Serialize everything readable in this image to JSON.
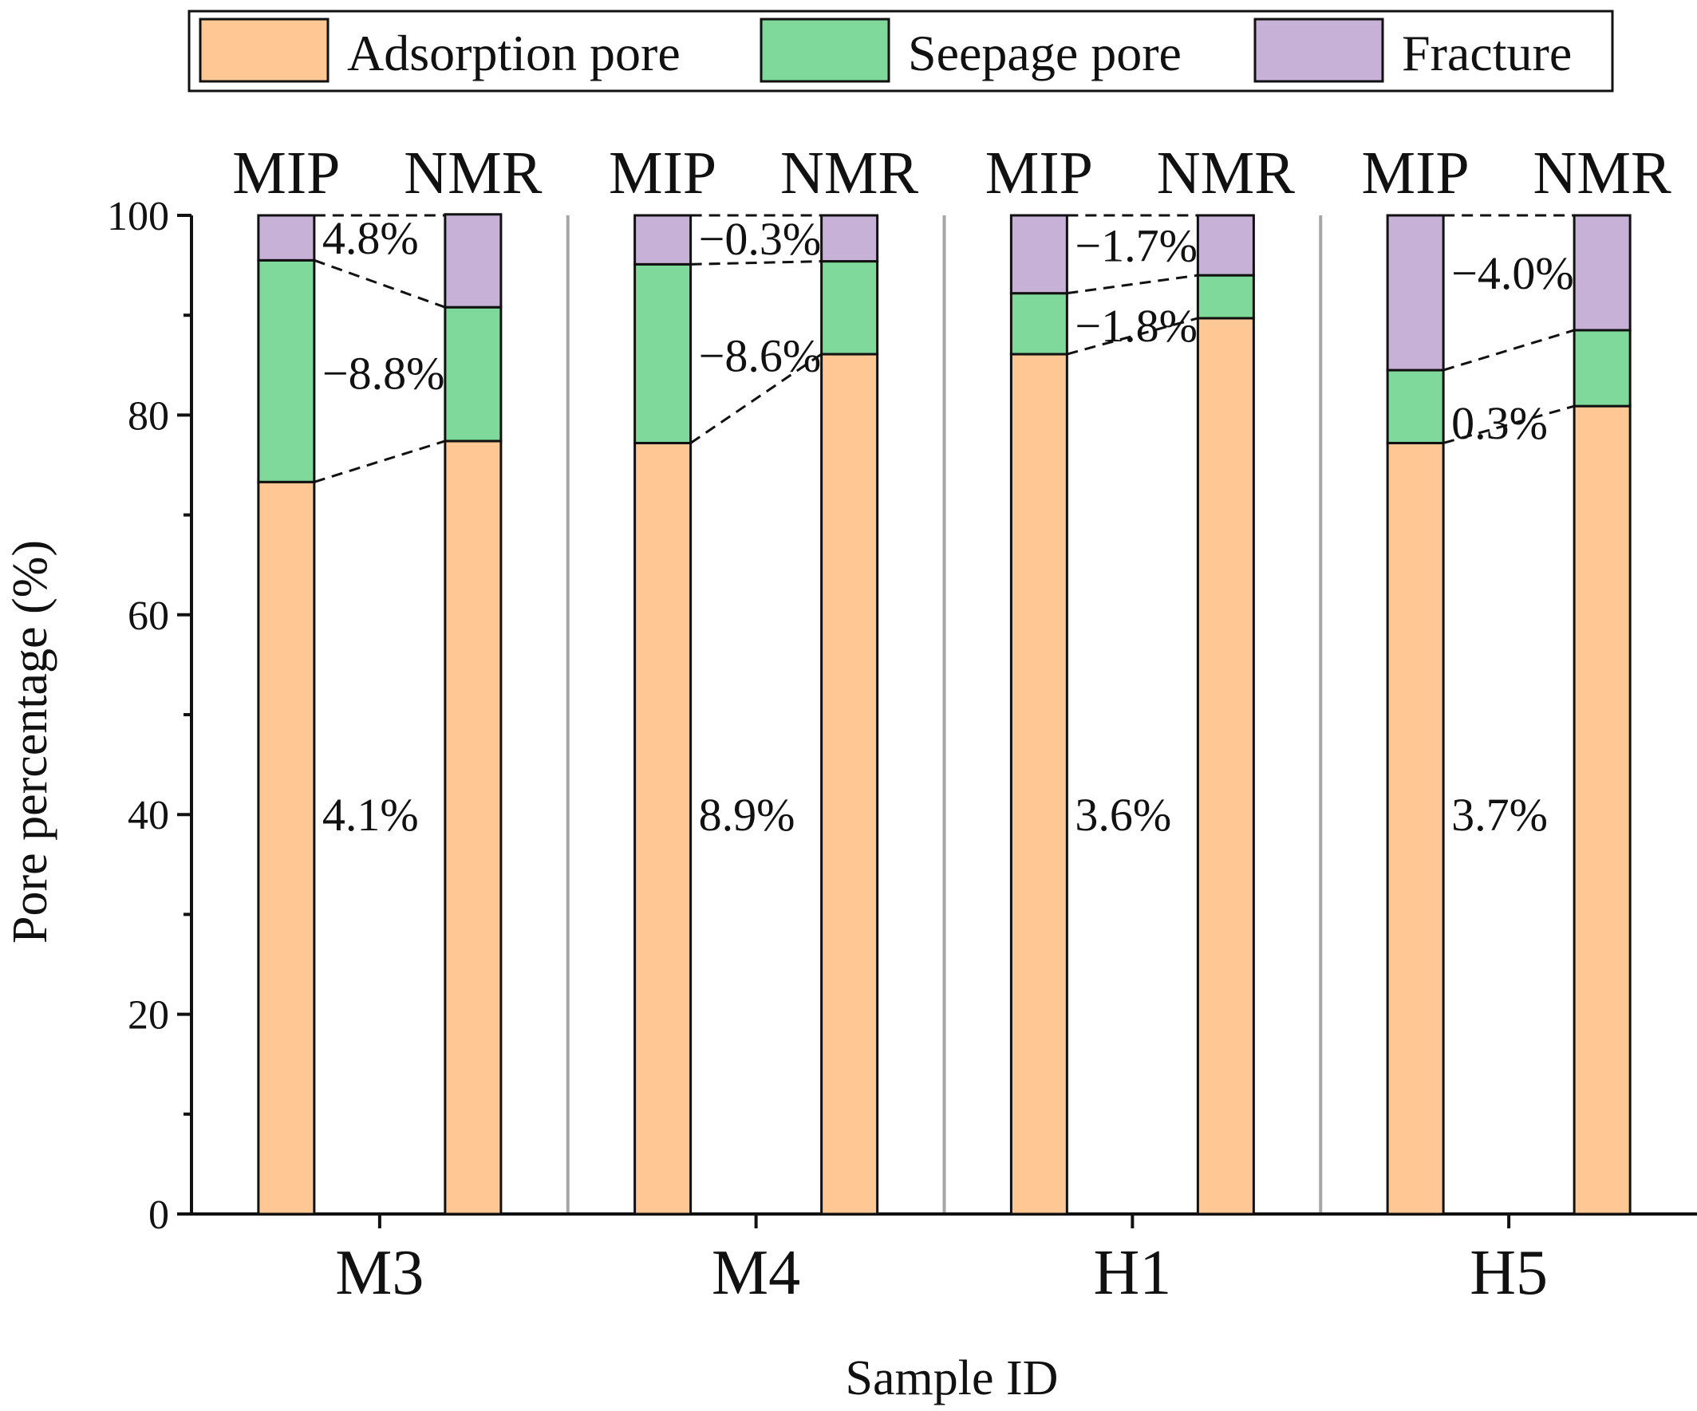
{
  "chart_data": {
    "type": "stacked-bar",
    "xlabel": "Sample ID",
    "ylabel": "Pore percentage (%)",
    "ylim": [
      0,
      100
    ],
    "yticks": [
      0,
      20,
      40,
      60,
      80,
      100
    ],
    "categories": [
      "M3",
      "M4",
      "H1",
      "H5"
    ],
    "methods": [
      "MIP",
      "NMR"
    ],
    "legend": [
      {
        "name": "Adsorption pore",
        "color": "#FEC794"
      },
      {
        "name": "Seepage pore",
        "color": "#7FD99A"
      },
      {
        "name": "Fracture",
        "color": "#C7B1D7"
      }
    ],
    "series": [
      {
        "name": "Adsorption pore",
        "values": {
          "M3": {
            "MIP": 73.3,
            "NMR": 77.4
          },
          "M4": {
            "MIP": 77.2,
            "NMR": 86.1
          },
          "H1": {
            "MIP": 86.1,
            "NMR": 89.7
          },
          "H5": {
            "MIP": 77.2,
            "NMR": 80.9
          }
        }
      },
      {
        "name": "Seepage pore",
        "values": {
          "M3": {
            "MIP": 22.2,
            "NMR": 13.4
          },
          "M4": {
            "MIP": 17.9,
            "NMR": 9.3
          },
          "H1": {
            "MIP": 6.1,
            "NMR": 4.3
          },
          "H5": {
            "MIP": 7.3,
            "NMR": 7.6
          }
        }
      },
      {
        "name": "Fracture",
        "values": {
          "M3": {
            "MIP": 4.5,
            "NMR": 9.3
          },
          "M4": {
            "MIP": 4.9,
            "NMR": 4.6
          },
          "H1": {
            "MIP": 7.8,
            "NMR": 6.0
          },
          "H5": {
            "MIP": 15.5,
            "NMR": 11.5
          }
        }
      }
    ],
    "annotations": [
      {
        "category": "M3",
        "fracture": "4.8%",
        "seepage": "−8.8%",
        "adsorption": "4.1%"
      },
      {
        "category": "M4",
        "fracture": "−0.3%",
        "seepage": "−8.6%",
        "adsorption": "8.9%"
      },
      {
        "category": "H1",
        "fracture": "−1.7%",
        "seepage": "−1.8%",
        "adsorption": "3.6%"
      },
      {
        "category": "H5",
        "fracture": "−4.0%",
        "seepage": "0.3%",
        "adsorption": "3.7%"
      }
    ]
  }
}
